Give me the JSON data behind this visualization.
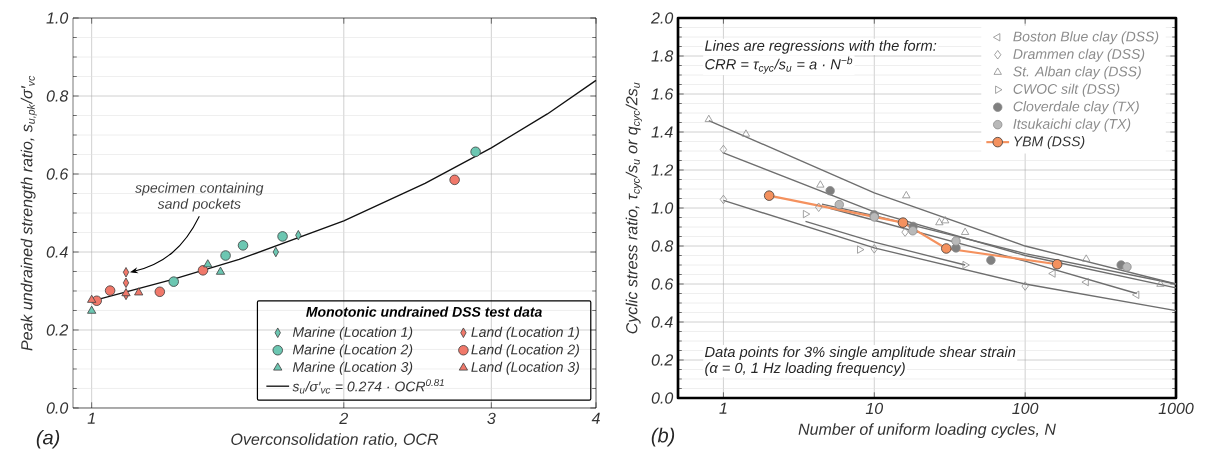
{
  "chart_data": [
    {
      "type": "scatter",
      "xlabel": "Overconsolidation ratio, OCR",
      "ylabel": "Peak undrained strength ratio, s$_{u,pk}$/σ′$_{vc}$",
      "legend_title": "Monotonic undrained DSS test data",
      "log": "x",
      "grid": true,
      "legend": "bottom right",
      "xlim": [
        0.95,
        4
      ],
      "xticks": [
        1,
        2,
        3,
        4
      ],
      "ylim": [
        0,
        1
      ],
      "yticks": [
        {
          "value": 0,
          "label": "0.0"
        },
        {
          "value": 0.2,
          "label": "0.2"
        },
        {
          "value": 0.4,
          "label": "0.4"
        },
        {
          "value": 0.6,
          "label": "0.6"
        },
        {
          "value": 0.8,
          "label": "0.8"
        },
        {
          "value": 1,
          "label": "1.0"
        }
      ],
      "annotations": [
        {
          "text": "specimen containing sand pockets",
          "x": 1.099,
          "y": 0.348
        },
        "(a)"
      ],
      "series": [
        {
          "name": "Marine (Location 1)",
          "color": "#6cc7b2",
          "marker": "diamond",
          "x": [
            1.659,
            1.765
          ],
          "values": [
            0.4,
            0.443
          ]
        },
        {
          "name": "Land (Location 1)",
          "color": "#f0786a",
          "marker": "diamond",
          "x": [
            1.099,
            1.099,
            1.099
          ],
          "values": [
            0.348,
            0.321,
            0.29
          ]
        },
        {
          "name": "Marine (Location 2)",
          "color": "#6cc7b2",
          "marker": "circle",
          "x": [
            1.253,
            1.445,
            1.516,
            1.69,
            2.873
          ],
          "values": [
            0.324,
            0.391,
            0.417,
            0.44,
            0.657
          ]
        },
        {
          "name": "Land (Location 2)",
          "color": "#f0786a",
          "marker": "circle",
          "x": [
            1.014,
            1.052,
            1.206,
            1.358,
            2.712
          ],
          "values": [
            0.275,
            0.301,
            0.298,
            0.353,
            0.585
          ]
        },
        {
          "name": "Marine (Location 3)",
          "color": "#6cc7b2",
          "marker": "triangle",
          "x": [
            1.0,
            1.376,
            1.425
          ],
          "values": [
            0.249,
            0.368,
            0.349
          ]
        },
        {
          "name": "Land (Location 3)",
          "color": "#f0786a",
          "marker": "triangle",
          "x": [
            1.0,
            1.099,
            1.138
          ],
          "values": [
            0.277,
            0.294,
            0.296
          ]
        },
        {
          "name": "s$_{u}$/σ′$_{vc}$ = 0.274 · OCR$^{0.81}$",
          "type": "line",
          "color": "#111111",
          "marker": "none",
          "x": [
            1,
            1.25,
            1.5,
            2,
            2.5,
            3,
            3.5,
            4
          ],
          "values": [
            0.274,
            0.33,
            0.381,
            0.48,
            0.576,
            0.667,
            0.754,
            0.84
          ]
        }
      ]
    },
    {
      "type": "scatter",
      "xlabel": "Number of uniform loading cycles, N",
      "ylabel": "Cyclic stress ratio, τ$_{cyc}$/s$_{u}$ or q$_{cyc}$/2s$_{u}$",
      "log": "x",
      "grid": true,
      "legend": "top right",
      "xlim": [
        0.5,
        1000
      ],
      "xticks": [
        1,
        10,
        100,
        1000
      ],
      "ylim": [
        0,
        2
      ],
      "yticks": [
        {
          "value": 0,
          "label": "0.0"
        },
        {
          "value": 0.2,
          "label": "0.2"
        },
        {
          "value": 0.4,
          "label": "0.4"
        },
        {
          "value": 0.6,
          "label": "0.6"
        },
        {
          "value": 0.8,
          "label": "0.8"
        },
        {
          "value": 1,
          "label": "1.0"
        },
        {
          "value": 1.2,
          "label": "1.2"
        },
        {
          "value": 1.4,
          "label": "1.4"
        },
        {
          "value": 1.6,
          "label": "1.6"
        },
        {
          "value": 1.8,
          "label": "1.8"
        },
        {
          "value": 2,
          "label": "2.0"
        }
      ],
      "annotations": [
        "Lines are regressions with the form:",
        "CRR = τ$_{cyc}$/s$_{u}$ = a · N$^{−b}$",
        "Data points for 3% single amplitude shear strain",
        "(α = 0, 1 Hz loading frequency)",
        "(b)"
      ],
      "series": [
        {
          "type": "line",
          "color": "#6e6e6e",
          "marker": "none",
          "x": [
            0.8,
            10,
            100,
            1000
          ],
          "values": [
            1.46,
            1.08,
            0.8,
            0.6
          ]
        },
        {
          "type": "line",
          "color": "#6e6e6e",
          "marker": "none",
          "x": [
            1,
            10,
            100,
            1000
          ],
          "values": [
            1.29,
            0.98,
            0.75,
            0.58
          ]
        },
        {
          "type": "line",
          "color": "#6e6e6e",
          "marker": "none",
          "x": [
            1,
            10,
            100,
            1000
          ],
          "values": [
            1.04,
            0.79,
            0.6,
            0.46
          ]
        },
        {
          "type": "line",
          "color": "#6e6e6e",
          "marker": "none",
          "x": [
            3.5,
            10,
            40
          ],
          "values": [
            0.93,
            0.82,
            0.7
          ]
        },
        {
          "type": "line",
          "color": "#6e6e6e",
          "marker": "none",
          "x": [
            4.5,
            10,
            100,
            1000
          ],
          "values": [
            1.02,
            0.96,
            0.76,
            0.6
          ]
        },
        {
          "type": "line",
          "color": "#6e6e6e",
          "marker": "none",
          "x": [
            5,
            100,
            549
          ],
          "values": [
            1.0,
            0.72,
            0.55
          ]
        },
        {
          "name": "Boston Blue clay (DSS)",
          "color": "#8c8c8c",
          "marker": "triangle-left",
          "x": [
            153,
            254,
            549
          ],
          "values": [
            0.655,
            0.61,
            0.543
          ]
        },
        {
          "name": "Drammen clay (DSS)",
          "color": "#8c8c8c",
          "marker": "diamond-open",
          "x": [
            1,
            1,
            4.28,
            10,
            16,
            100
          ],
          "values": [
            1.308,
            1.045,
            1.004,
            0.785,
            0.873,
            0.589
          ]
        },
        {
          "name": "St. Alban clay (DSS)",
          "color": "#8c8c8c",
          "marker": "triangle-open",
          "x": [
            0.8,
            1.41,
            4.39,
            16.3,
            27,
            29.5,
            40,
            254,
            789
          ],
          "values": [
            1.466,
            1.389,
            1.121,
            1.065,
            0.923,
            0.933,
            0.872,
            0.731,
            0.599
          ]
        },
        {
          "name": "CWOC silt (DSS)",
          "color": "#8c8c8c",
          "marker": "triangle-right",
          "x": [
            3.5,
            8,
            40
          ],
          "values": [
            0.968,
            0.781,
            0.7
          ]
        },
        {
          "name": "Cloverdale clay (TX)",
          "color": "#8c8c8c",
          "marker": "half-circle-right",
          "x": [
            5.1,
            10,
            18.1,
            34.8,
            59.3,
            433
          ],
          "values": [
            1.091,
            0.964,
            0.903,
            0.79,
            0.725,
            0.7
          ]
        },
        {
          "name": "Itsukaichi clay (TX)",
          "color": "#8c8c8c",
          "marker": "half-circle-left",
          "x": [
            5.86,
            10,
            18,
            34.8,
            473
          ],
          "values": [
            1.018,
            0.953,
            0.88,
            0.826,
            0.69
          ]
        },
        {
          "name": "YBM (DSS)",
          "type": "line",
          "color": "#f4915e",
          "marker": "circle",
          "x": [
            2.01,
            15.5,
            30,
            163
          ],
          "values": [
            1.065,
            0.923,
            0.787,
            0.704
          ]
        }
      ]
    }
  ]
}
